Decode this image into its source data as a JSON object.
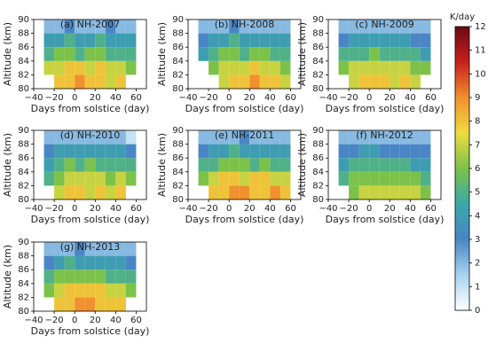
{
  "chart_data": [
    {
      "type": "heatmap",
      "title": "(a) NH-2007",
      "xlabel": "Days from solstice (day)",
      "ylabel": "Altitude (km)",
      "xlim": [
        -40,
        70
      ],
      "ylim": [
        80,
        90
      ],
      "xticks": [
        {
          "value": -40,
          "label": "−40"
        },
        {
          "value": -20,
          "label": "−20"
        },
        0,
        20,
        40,
        60
      ],
      "yticks": [
        80,
        82,
        84,
        86,
        88,
        90
      ],
      "x_bins": [
        -30,
        -20,
        -10,
        0,
        10,
        20,
        30,
        40,
        50,
        60
      ],
      "y_bins": [
        80,
        82,
        84,
        86,
        88,
        90
      ],
      "z": [
        [
          null,
          8,
          8,
          9,
          8,
          8,
          7,
          8,
          null
        ],
        [
          7,
          7,
          8,
          8,
          7,
          8,
          7,
          7,
          6
        ],
        [
          5,
          6,
          6,
          5,
          6,
          6,
          5,
          5,
          5
        ],
        [
          4,
          4,
          5,
          4,
          4,
          5,
          4,
          4,
          4
        ],
        [
          2,
          2,
          3,
          2,
          2,
          2,
          3,
          2,
          2
        ]
      ]
    },
    {
      "type": "heatmap",
      "title": "(b) NH-2008",
      "xlabel": "Days from solstice (day)",
      "ylabel": "Altitude (km)",
      "xlim": [
        -40,
        70
      ],
      "ylim": [
        80,
        90
      ],
      "xticks": [
        {
          "value": -40,
          "label": "−40"
        },
        {
          "value": -20,
          "label": "−20"
        },
        0,
        20,
        40,
        60
      ],
      "yticks": [
        80,
        82,
        84,
        86,
        88,
        90
      ],
      "x_bins": [
        -30,
        -20,
        -10,
        0,
        10,
        20,
        30,
        40,
        50,
        60
      ],
      "y_bins": [
        80,
        82,
        84,
        86,
        88,
        90
      ],
      "z": [
        [
          null,
          null,
          7,
          8,
          8,
          9,
          8,
          8,
          7
        ],
        [
          null,
          6,
          7,
          7,
          7,
          8,
          7,
          7,
          6
        ],
        [
          4,
          5,
          6,
          6,
          5,
          6,
          6,
          5,
          5
        ],
        [
          3,
          4,
          4,
          5,
          4,
          4,
          4,
          4,
          4
        ],
        [
          2,
          2,
          2,
          3,
          2,
          2,
          2,
          2,
          2
        ]
      ]
    },
    {
      "type": "heatmap",
      "title": "(c) NH-2009",
      "xlabel": "Days from solstice (day)",
      "ylabel": "Altitude (km)",
      "xlim": [
        -40,
        70
      ],
      "ylim": [
        80,
        90
      ],
      "xticks": [
        {
          "value": -40,
          "label": "−40"
        },
        {
          "value": -20,
          "label": "−20"
        },
        0,
        20,
        40,
        60
      ],
      "yticks": [
        80,
        82,
        84,
        86,
        88,
        90
      ],
      "x_bins": [
        -30,
        -20,
        -10,
        0,
        10,
        20,
        30,
        40,
        50,
        60
      ],
      "y_bins": [
        80,
        82,
        84,
        86,
        88,
        90
      ],
      "z": [
        [
          null,
          7,
          8,
          8,
          8,
          7,
          8,
          7,
          null
        ],
        [
          6,
          7,
          7,
          7,
          7,
          7,
          7,
          6,
          6
        ],
        [
          5,
          5,
          5,
          6,
          5,
          5,
          5,
          5,
          4
        ],
        [
          3,
          4,
          4,
          4,
          4,
          4,
          4,
          3,
          3
        ],
        [
          2,
          2,
          2,
          2,
          2,
          2,
          2,
          2,
          2
        ]
      ]
    },
    {
      "type": "heatmap",
      "title": "(d) NH-2010",
      "xlabel": "Days from solstice (day)",
      "ylabel": "Altitude (km)",
      "xlim": [
        -40,
        70
      ],
      "ylim": [
        80,
        90
      ],
      "xticks": [
        {
          "value": -40,
          "label": "−40"
        },
        {
          "value": -20,
          "label": "−20"
        },
        0,
        20,
        40,
        60
      ],
      "yticks": [
        80,
        82,
        84,
        86,
        88,
        90
      ],
      "x_bins": [
        -30,
        -20,
        -10,
        0,
        10,
        20,
        30,
        40,
        50,
        60
      ],
      "y_bins": [
        80,
        82,
        84,
        86,
        88,
        90
      ],
      "z": [
        [
          null,
          7,
          8,
          8,
          7,
          8,
          7,
          8,
          null
        ],
        [
          5,
          6,
          7,
          7,
          7,
          7,
          6,
          7,
          6
        ],
        [
          4,
          5,
          6,
          5,
          6,
          5,
          5,
          5,
          5
        ],
        [
          3,
          4,
          4,
          4,
          4,
          4,
          4,
          4,
          3
        ],
        [
          2,
          2,
          2,
          2,
          2,
          2,
          2,
          2,
          1
        ]
      ]
    },
    {
      "type": "heatmap",
      "title": "(e) NH-2011",
      "xlabel": "Days from solstice (day)",
      "ylabel": "Altitude (km)",
      "xlim": [
        -40,
        70
      ],
      "ylim": [
        80,
        90
      ],
      "xticks": [
        {
          "value": -40,
          "label": "−40"
        },
        {
          "value": -20,
          "label": "−20"
        },
        0,
        20,
        40,
        60
      ],
      "yticks": [
        80,
        82,
        84,
        86,
        88,
        90
      ],
      "x_bins": [
        -30,
        -20,
        -10,
        0,
        10,
        20,
        30,
        40,
        50,
        60
      ],
      "y_bins": [
        80,
        82,
        84,
        86,
        88,
        90
      ],
      "z": [
        [
          null,
          8,
          8,
          9,
          9,
          8,
          8,
          9,
          8
        ],
        [
          6,
          7,
          8,
          8,
          7,
          8,
          8,
          7,
          7
        ],
        [
          5,
          5,
          6,
          6,
          6,
          5,
          6,
          5,
          5
        ],
        [
          3,
          4,
          4,
          5,
          4,
          4,
          4,
          4,
          4
        ],
        [
          2,
          2,
          2,
          2,
          3,
          2,
          2,
          2,
          2
        ]
      ]
    },
    {
      "type": "heatmap",
      "title": "(f) NH-2012",
      "xlabel": "Days from solstice (day)",
      "ylabel": "Altitude (km)",
      "xlim": [
        -40,
        70
      ],
      "ylim": [
        80,
        90
      ],
      "xticks": [
        {
          "value": -40,
          "label": "−40"
        },
        {
          "value": -20,
          "label": "−20"
        },
        0,
        20,
        40,
        60
      ],
      "yticks": [
        80,
        82,
        84,
        86,
        88,
        90
      ],
      "x_bins": [
        -30,
        -20,
        -10,
        0,
        10,
        20,
        30,
        40,
        50,
        60
      ],
      "y_bins": [
        80,
        82,
        84,
        86,
        88,
        90
      ],
      "z": [
        [
          null,
          6,
          7,
          7,
          7,
          7,
          7,
          7,
          6
        ],
        [
          5,
          6,
          6,
          6,
          6,
          6,
          6,
          6,
          5
        ],
        [
          4,
          5,
          5,
          5,
          5,
          5,
          5,
          4,
          4
        ],
        [
          3,
          3,
          4,
          4,
          3,
          3,
          3,
          3,
          3
        ],
        [
          2,
          2,
          2,
          2,
          2,
          2,
          2,
          2,
          2
        ]
      ]
    },
    {
      "type": "heatmap",
      "title": "(g) NH-2013",
      "xlabel": "Days from solstice (day)",
      "ylabel": "Altitude (km)",
      "xlim": [
        -40,
        70
      ],
      "ylim": [
        80,
        90
      ],
      "xticks": [
        {
          "value": -40,
          "label": "−40"
        },
        {
          "value": -20,
          "label": "−20"
        },
        0,
        20,
        40,
        60
      ],
      "yticks": [
        80,
        82,
        84,
        86,
        88,
        90
      ],
      "x_bins": [
        -30,
        -20,
        -10,
        0,
        10,
        20,
        30,
        40,
        50,
        60
      ],
      "y_bins": [
        80,
        82,
        84,
        86,
        88,
        90
      ],
      "z": [
        [
          null,
          8,
          8,
          9,
          9,
          8,
          8,
          8,
          null
        ],
        [
          6,
          7,
          8,
          8,
          8,
          8,
          7,
          7,
          6
        ],
        [
          5,
          6,
          6,
          6,
          6,
          6,
          5,
          5,
          5
        ],
        [
          3,
          4,
          5,
          4,
          4,
          4,
          4,
          4,
          3
        ],
        [
          2,
          2,
          2,
          3,
          2,
          2,
          2,
          2,
          2
        ]
      ]
    }
  ],
  "colorbar": {
    "label": "K/day",
    "zlim": [
      0,
      12
    ],
    "ticks": [
      0,
      1,
      2,
      3,
      4,
      5,
      6,
      7,
      8,
      9,
      10,
      11,
      12
    ],
    "colormap": [
      "#ffffff",
      "#a6d3ef",
      "#4a86c5",
      "#3aa8a8",
      "#7cc24a",
      "#eedc3e",
      "#f0902e",
      "#c8201e",
      "#6a0a14"
    ]
  }
}
